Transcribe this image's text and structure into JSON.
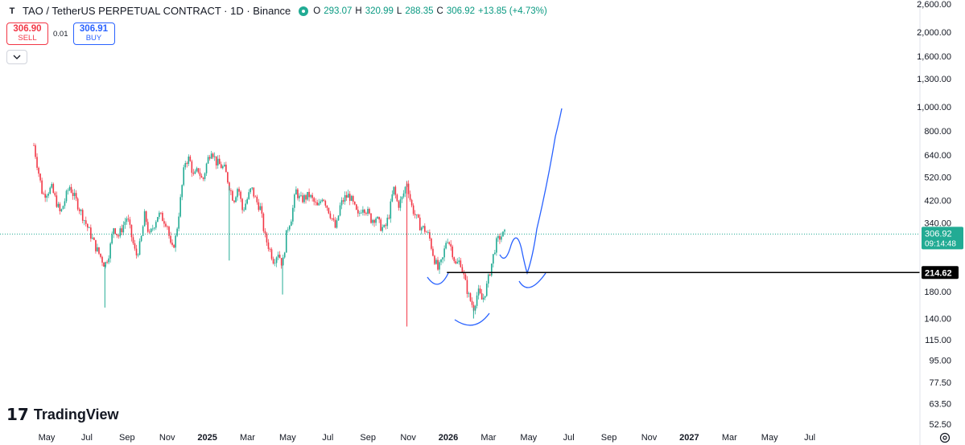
{
  "header": {
    "symbol_icon": "T",
    "title": "TAO / TetherUS PERPETUAL CONTRACT · 1D · Binance",
    "status_icon": "market-open-icon",
    "ohlc": {
      "o_label": "O",
      "o_value": "293.07",
      "h_label": "H",
      "h_value": "320.99",
      "l_label": "L",
      "l_value": "288.35",
      "c_label": "C",
      "c_value": "306.92",
      "change": "+13.85 (+4.73%)"
    }
  },
  "trade": {
    "sell_price": "306.90",
    "sell_label": "SELL",
    "spread": "0.01",
    "buy_price": "306.91",
    "buy_label": "BUY"
  },
  "brand": {
    "logo_mark": "17",
    "name": "TradingView"
  },
  "colors": {
    "up": "#22ab94",
    "down": "#f23645",
    "drawing": "#2962ff",
    "line": "#000000",
    "accent_buy": "#2962ff"
  },
  "icons": [
    "chevron-down-icon",
    "settings-icon"
  ],
  "chart_data": {
    "type": "candlestick",
    "scale": "log",
    "ylim": [
      52.5,
      2600
    ],
    "y_ticks": [
      "2,600.00",
      "2,000.00",
      "1,600.00",
      "1,300.00",
      "1,000.00",
      "800.00",
      "640.00",
      "520.00",
      "420.00",
      "340.00",
      "180.00",
      "140.00",
      "115.00",
      "95.00",
      "77.50",
      "63.50",
      "52.50"
    ],
    "y_tick_values": [
      2600,
      2000,
      1600,
      1300,
      1000,
      800,
      640,
      520,
      420,
      340,
      180,
      140,
      115,
      95,
      77.5,
      63.5,
      52.5
    ],
    "x_ticks": [
      "May",
      "Jul",
      "Sep",
      "Nov",
      "2025",
      "Mar",
      "May",
      "Jul",
      "Sep",
      "Nov",
      "2026",
      "Mar",
      "May",
      "Jul",
      "Sep",
      "Nov",
      "2027",
      "Mar",
      "May",
      "Jul"
    ],
    "x_tick_bold": [
      false,
      false,
      false,
      false,
      true,
      false,
      false,
      false,
      false,
      false,
      true,
      false,
      false,
      false,
      false,
      false,
      true,
      false,
      false,
      false
    ],
    "last_price": {
      "value": 306.92,
      "label": "306.92",
      "countdown": "09:14:48"
    },
    "horizontal_line": {
      "value": 214.62,
      "label": "214.62"
    },
    "price_path": [
      {
        "t": 0,
        "p": 700
      },
      {
        "t": 2,
        "p": 440
      },
      {
        "t": 4,
        "p": 470
      },
      {
        "t": 6,
        "p": 370
      },
      {
        "t": 8,
        "p": 480
      },
      {
        "t": 10,
        "p": 400
      },
      {
        "t": 12,
        "p": 330
      },
      {
        "t": 14,
        "p": 270
      },
      {
        "t": 16,
        "p": 230
      },
      {
        "t": 17,
        "p": 260
      },
      {
        "t": 18,
        "p": 330
      },
      {
        "t": 19,
        "p": 300
      },
      {
        "t": 21,
        "p": 360
      },
      {
        "t": 22,
        "p": 300
      },
      {
        "t": 23,
        "p": 250
      },
      {
        "t": 24,
        "p": 280
      },
      {
        "t": 25,
        "p": 370
      },
      {
        "t": 26,
        "p": 300
      },
      {
        "t": 28,
        "p": 370
      },
      {
        "t": 30,
        "p": 340
      },
      {
        "t": 31,
        "p": 260
      },
      {
        "t": 32,
        "p": 300
      },
      {
        "t": 33,
        "p": 420
      },
      {
        "t": 34,
        "p": 600
      },
      {
        "t": 35,
        "p": 620
      },
      {
        "t": 36,
        "p": 520
      },
      {
        "t": 37,
        "p": 560
      },
      {
        "t": 38,
        "p": 500
      },
      {
        "t": 39,
        "p": 600
      },
      {
        "t": 40,
        "p": 680
      },
      {
        "t": 41,
        "p": 600
      },
      {
        "t": 43,
        "p": 560
      },
      {
        "t": 44,
        "p": 480
      },
      {
        "t": 45,
        "p": 420
      },
      {
        "t": 46,
        "p": 480
      },
      {
        "t": 47,
        "p": 380
      },
      {
        "t": 49,
        "p": 470
      },
      {
        "t": 50,
        "p": 420
      },
      {
        "t": 51,
        "p": 390
      },
      {
        "t": 52,
        "p": 300
      },
      {
        "t": 53,
        "p": 270
      },
      {
        "t": 54,
        "p": 240
      },
      {
        "t": 55,
        "p": 260
      },
      {
        "t": 56,
        "p": 230
      },
      {
        "t": 57,
        "p": 320
      },
      {
        "t": 58,
        "p": 360
      },
      {
        "t": 59,
        "p": 460
      },
      {
        "t": 60,
        "p": 420
      },
      {
        "t": 62,
        "p": 440
      },
      {
        "t": 64,
        "p": 390
      },
      {
        "t": 65,
        "p": 440
      },
      {
        "t": 67,
        "p": 360
      },
      {
        "t": 68,
        "p": 320
      },
      {
        "t": 69,
        "p": 400
      },
      {
        "t": 70,
        "p": 430
      },
      {
        "t": 71,
        "p": 440
      },
      {
        "t": 72,
        "p": 400
      },
      {
        "t": 73,
        "p": 360
      },
      {
        "t": 74,
        "p": 400
      },
      {
        "t": 75,
        "p": 380
      },
      {
        "t": 76,
        "p": 350
      },
      {
        "t": 77,
        "p": 360
      },
      {
        "t": 78,
        "p": 330
      },
      {
        "t": 79,
        "p": 320
      },
      {
        "t": 80,
        "p": 370
      },
      {
        "t": 81,
        "p": 470
      },
      {
        "t": 82,
        "p": 400
      },
      {
        "t": 83,
        "p": 430
      },
      {
        "t": 84,
        "p": 500
      },
      {
        "t": 85,
        "p": 400
      },
      {
        "t": 86,
        "p": 360
      },
      {
        "t": 87,
        "p": 330
      },
      {
        "t": 88,
        "p": 320
      },
      {
        "t": 89,
        "p": 300
      },
      {
        "t": 90,
        "p": 250
      },
      {
        "t": 91,
        "p": 220
      },
      {
        "t": 92,
        "p": 240
      },
      {
        "t": 93,
        "p": 300
      },
      {
        "t": 94,
        "p": 270
      },
      {
        "t": 95,
        "p": 230
      },
      {
        "t": 96,
        "p": 240
      },
      {
        "t": 97,
        "p": 200
      },
      {
        "t": 98,
        "p": 170
      },
      {
        "t": 99,
        "p": 155
      },
      {
        "t": 100,
        "p": 180
      },
      {
        "t": 101,
        "p": 165
      },
      {
        "t": 102,
        "p": 190
      },
      {
        "t": 103,
        "p": 230
      },
      {
        "t": 104,
        "p": 280
      },
      {
        "t": 105,
        "p": 300
      },
      {
        "t": 106,
        "p": 306.92
      }
    ],
    "wick_spikes": [
      {
        "t": 16,
        "low": 155
      },
      {
        "t": 44,
        "low": 240
      },
      {
        "t": 56,
        "low": 175
      },
      {
        "t": 84,
        "low": 130
      },
      {
        "t": 99,
        "low": 140
      }
    ],
    "drawing_label": "projection"
  }
}
